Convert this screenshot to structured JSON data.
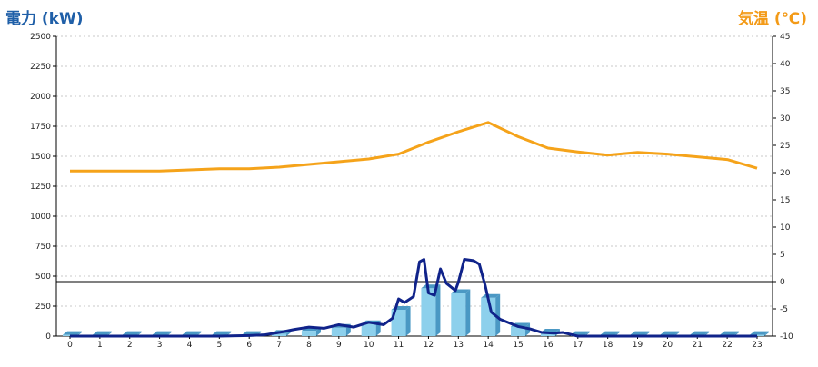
{
  "chart_data": {
    "type": "bar",
    "title_left": "電力 (kW)",
    "title_right": "気温 (℃)",
    "categories": [
      "0",
      "1",
      "2",
      "3",
      "4",
      "5",
      "6",
      "7",
      "8",
      "9",
      "10",
      "11",
      "12",
      "13",
      "14",
      "15",
      "16",
      "17",
      "18",
      "19",
      "20",
      "21",
      "22",
      "23"
    ],
    "y_left": {
      "min": 0,
      "max": 2500,
      "step": 250
    },
    "y_right": {
      "min": -10,
      "max": 45,
      "step": 5
    },
    "reference_line_right": 0,
    "grid": true,
    "legend": "none",
    "colors": {
      "bar": "#8dd0ec",
      "bar_side": "#4a98c4",
      "power_line": "#10238a",
      "temp_line": "#f5a31a",
      "grid": "#c8c8c8",
      "zero_line": "#000000",
      "axis": "#000000",
      "title_left": "#1f5fa8",
      "title_right": "#f39a17"
    },
    "series": [
      {
        "type": "bar",
        "axis": "left",
        "values": [
          10,
          10,
          10,
          10,
          10,
          10,
          10,
          20,
          45,
          70,
          100,
          220,
          400,
          360,
          320,
          80,
          30,
          10,
          10,
          10,
          10,
          10,
          10,
          10
        ]
      },
      {
        "type": "line",
        "axis": "left",
        "x": [
          0,
          1,
          2,
          3,
          4,
          5,
          6,
          6.5,
          7,
          7.5,
          8,
          8.5,
          9,
          9.5,
          10,
          10.5,
          10.8,
          11,
          11.2,
          11.5,
          11.7,
          11.85,
          12,
          12.2,
          12.4,
          12.6,
          12.9,
          13,
          13.2,
          13.5,
          13.7,
          13.9,
          14.1,
          14.4,
          14.7,
          15,
          15.4,
          15.8,
          16.2,
          16.5,
          17,
          18,
          19,
          20,
          21,
          22,
          23
        ],
        "values": [
          0,
          0,
          0,
          0,
          0,
          0,
          5,
          10,
          30,
          55,
          75,
          65,
          95,
          75,
          115,
          95,
          150,
          310,
          280,
          330,
          620,
          640,
          360,
          340,
          560,
          440,
          380,
          450,
          640,
          630,
          600,
          420,
          200,
          140,
          110,
          80,
          60,
          30,
          25,
          30,
          0,
          0,
          0,
          0,
          0,
          0,
          0
        ]
      },
      {
        "type": "line",
        "axis": "right",
        "x": [
          0,
          1,
          2,
          3,
          4,
          5,
          6,
          7,
          8,
          9,
          10,
          11,
          12,
          13,
          14,
          15,
          16,
          17,
          18,
          19,
          20,
          21,
          22,
          23
        ],
        "values": [
          20.3,
          20.3,
          20.3,
          20.3,
          20.5,
          20.7,
          20.7,
          21,
          21.5,
          22,
          22.5,
          23.4,
          25.6,
          27.5,
          29.2,
          26.6,
          24.5,
          23.8,
          23.2,
          23.7,
          23.4,
          22.9,
          22.4,
          20.8
        ]
      }
    ]
  }
}
